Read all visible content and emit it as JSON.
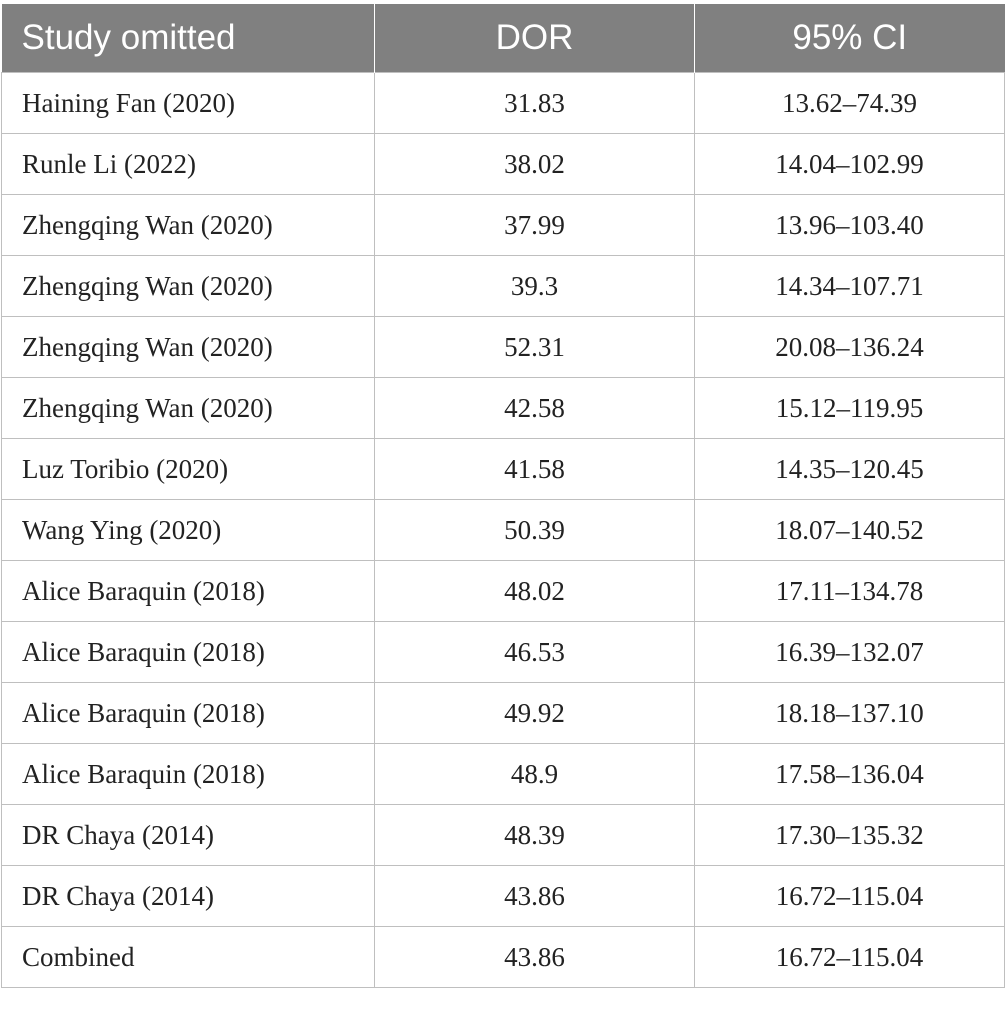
{
  "table": {
    "headers": [
      "Study omitted",
      "DOR",
      "95% CI"
    ],
    "rows": [
      {
        "study": "Haining Fan (2020)",
        "dor": "31.83",
        "ci": "13.62–74.39"
      },
      {
        "study": "Runle Li (2022)",
        "dor": "38.02",
        "ci": "14.04–102.99"
      },
      {
        "study": "Zhengqing Wan (2020)",
        "dor": "37.99",
        "ci": "13.96–103.40"
      },
      {
        "study": "Zhengqing Wan (2020)",
        "dor": "39.3",
        "ci": "14.34–107.71"
      },
      {
        "study": "Zhengqing Wan (2020)",
        "dor": "52.31",
        "ci": "20.08–136.24"
      },
      {
        "study": "Zhengqing Wan (2020)",
        "dor": "42.58",
        "ci": "15.12–119.95"
      },
      {
        "study": "Luz Toribio (2020)",
        "dor": "41.58",
        "ci": "14.35–120.45"
      },
      {
        "study": "Wang Ying (2020)",
        "dor": "50.39",
        "ci": "18.07–140.52"
      },
      {
        "study": "Alice Baraquin (2018)",
        "dor": "48.02",
        "ci": "17.11–134.78"
      },
      {
        "study": "Alice Baraquin (2018)",
        "dor": "46.53",
        "ci": "16.39–132.07"
      },
      {
        "study": "Alice Baraquin (2018)",
        "dor": "49.92",
        "ci": "18.18–137.10"
      },
      {
        "study": "Alice Baraquin (2018)",
        "dor": "48.9",
        "ci": "17.58–136.04"
      },
      {
        "study": "DR Chaya (2014)",
        "dor": "48.39",
        "ci": "17.30–135.32"
      },
      {
        "study": "DR Chaya (2014)",
        "dor": "43.86",
        "ci": "16.72–115.04"
      },
      {
        "study": "Combined",
        "dor": "43.86",
        "ci": "16.72–115.04"
      }
    ]
  },
  "colors": {
    "header_bg": "#808080",
    "header_text": "#ffffff",
    "grid_line": "#bfbfbf",
    "body_text": "#222222"
  }
}
